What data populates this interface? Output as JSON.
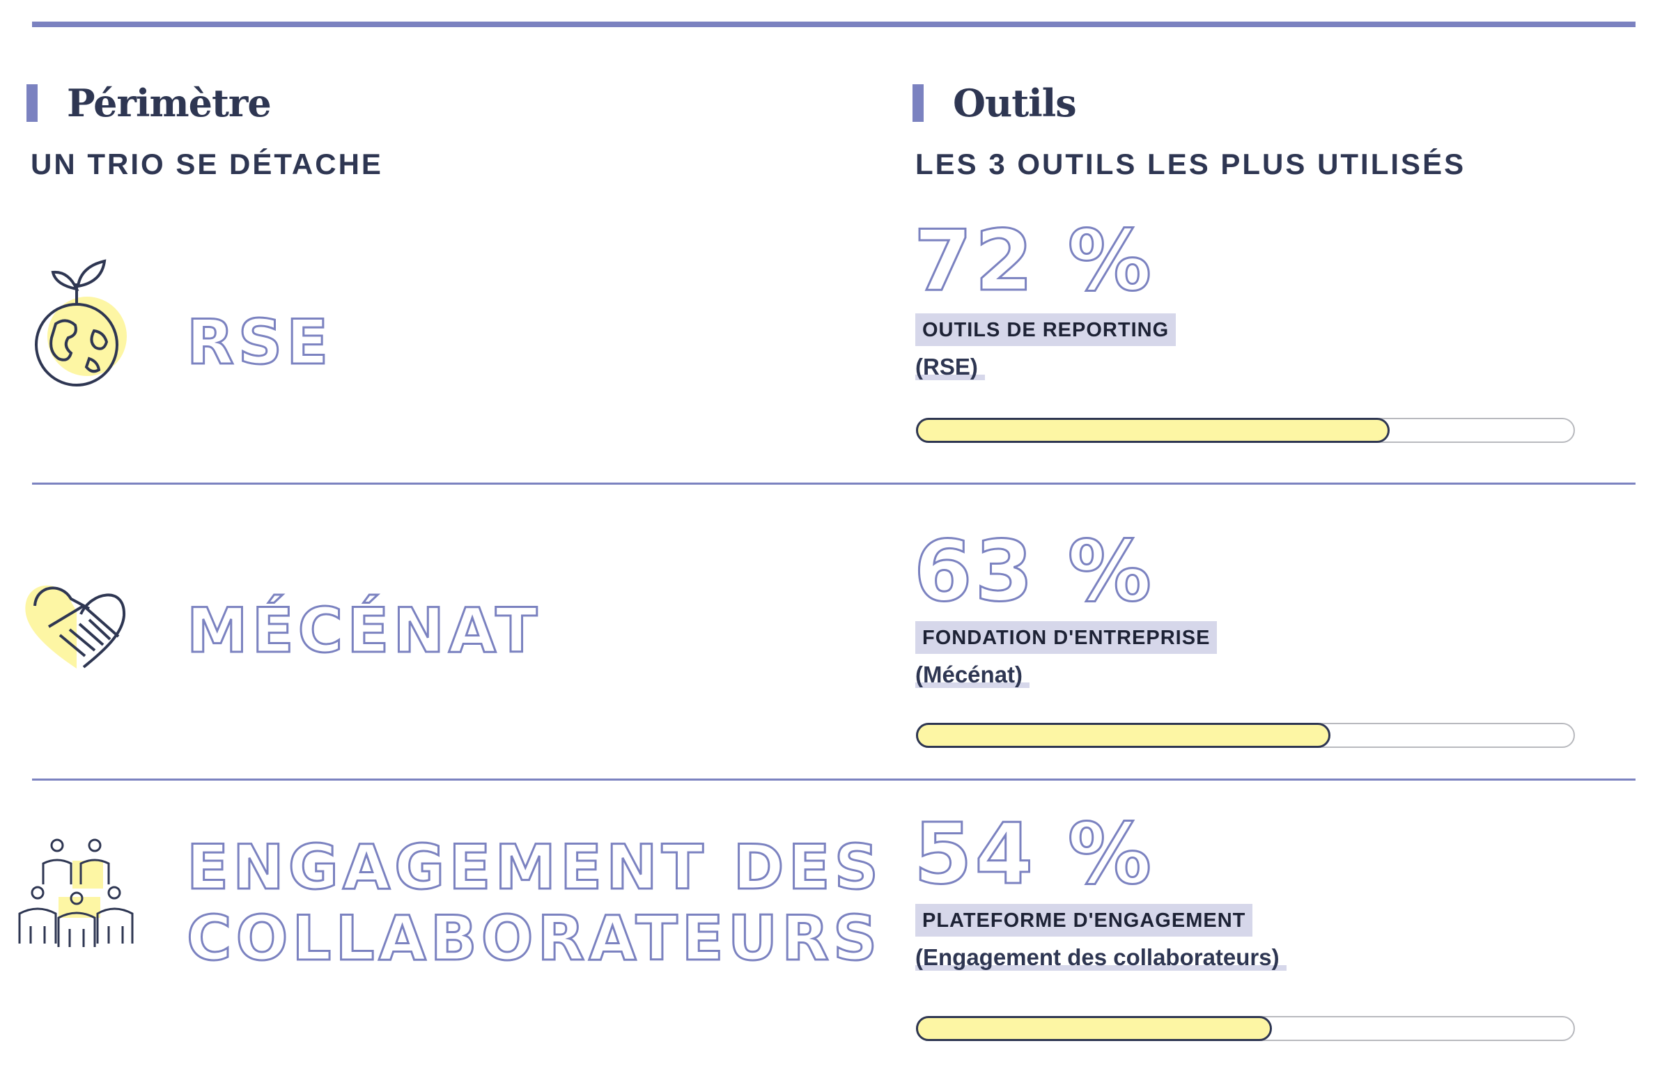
{
  "left_column": {
    "heading": "Périmètre",
    "subtitle": "UN TRIO SE DÉTACHE"
  },
  "right_column": {
    "heading": "Outils",
    "subtitle": "LES 3 OUTILS LES PLUS UTILISÉS"
  },
  "rows": [
    {
      "icon": "plant-globe-icon",
      "category": "RSE",
      "percent_label": "72 %",
      "percent": 72,
      "tool": "OUTILS DE REPORTING",
      "scope": "(RSE)"
    },
    {
      "icon": "heart-handshake-icon",
      "category": "MÉCÉNAT",
      "percent_label": "63 %",
      "percent": 63,
      "tool": "FONDATION D'ENTREPRISE",
      "scope": "(Mécénat)"
    },
    {
      "icon": "team-people-icon",
      "category_line1": "ENGAGEMENT DES",
      "category_line2": "COLLABORATEURS",
      "percent_label": "54 %",
      "percent": 54,
      "tool": "PLATEFORME D'ENGAGEMENT",
      "scope": "(Engagement des collaborateurs)"
    }
  ],
  "colors": {
    "accent": "#7b82c0",
    "navy": "#2e3652",
    "yellow": "#fdf6a4",
    "label_bg": "#d6d7ea"
  }
}
